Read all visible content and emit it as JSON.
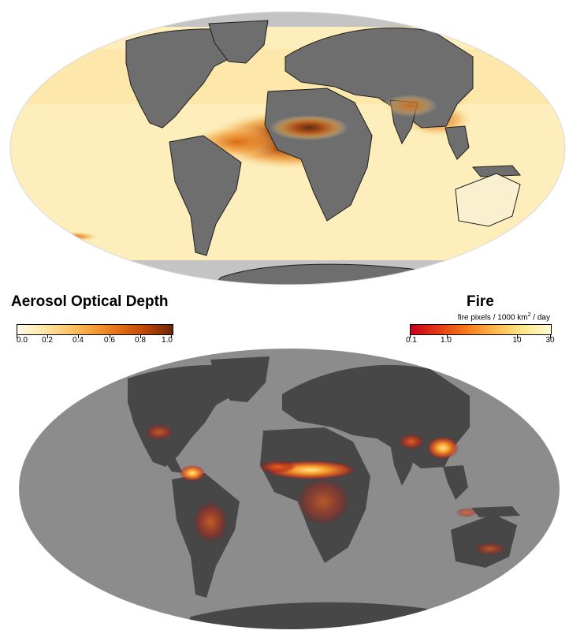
{
  "aerosol_legend": {
    "title": "Aerosol Optical Depth",
    "ticks": [
      "0.0",
      "0.2",
      "0.4",
      "0.6",
      "0.8",
      "1.0"
    ]
  },
  "fire_legend": {
    "title": "Fire",
    "units_prefix": "fire pixels / 1000 km",
    "units_sup": "2",
    "units_suffix": " / day",
    "ticks": [
      "0.1",
      "1.0",
      "10",
      "30"
    ]
  },
  "colors": {
    "land_gray": "#6e6e6e",
    "ocean_fire_gray": "#8c8c8c",
    "land_fire_dark": "#474747",
    "aerosol_low": "#fffbe6",
    "aerosol_high": "#6b2606",
    "fire_low": "#c8001c",
    "fire_high": "#fffbd6"
  }
}
